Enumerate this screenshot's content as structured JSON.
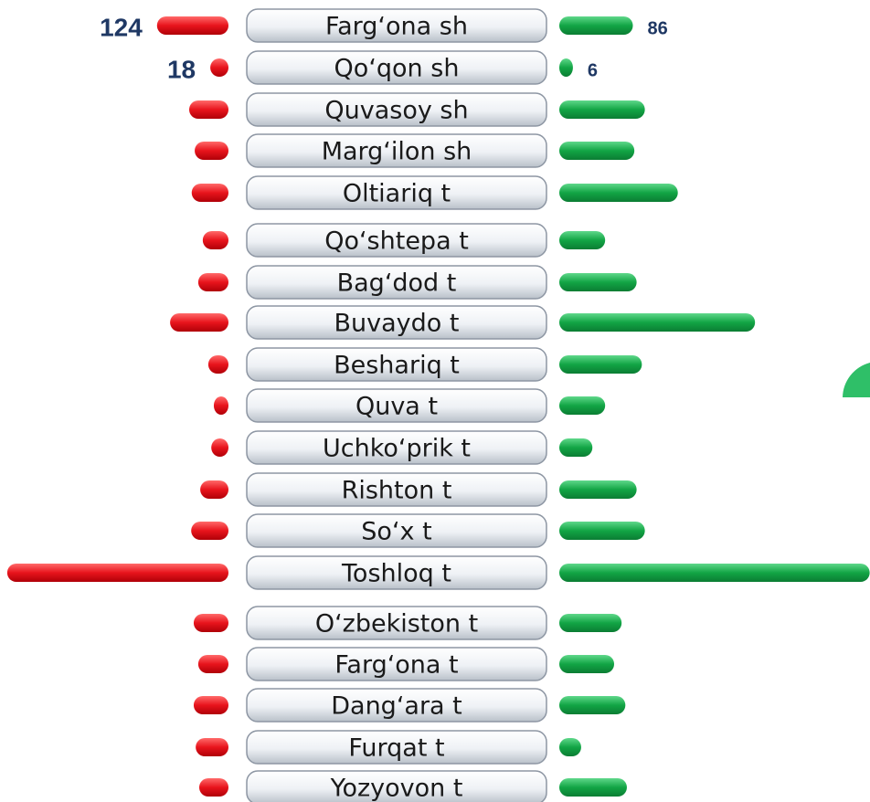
{
  "chart_data": {
    "type": "butterfly",
    "categories": [
      "Farg‘ona sh",
      "Qo‘qon sh",
      "Quvasoy sh",
      "Marg‘ilon sh",
      "Oltiariq t",
      "Qo‘shtepa t",
      "Bag‘dod t",
      "Buvaydo t",
      "Beshariq t",
      "Quva t",
      "Uchko‘prik t",
      "Rishton t",
      "So‘x t",
      "Toshloq t",
      "O‘zbekiston t",
      "Farg‘ona t",
      "Dang‘ara t",
      "Furqat t",
      "Yozyovon t"
    ],
    "series": [
      {
        "color": "#e8141c",
        "values": [
          124,
          18,
          60,
          49,
          55,
          33,
          42,
          98,
          22,
          11,
          16,
          38,
          56,
          422,
          51,
          42,
          51,
          47,
          40
        ],
        "value_labels": [
          "124",
          "18",
          null,
          null,
          null,
          null,
          null,
          null,
          null,
          null,
          null,
          null,
          null,
          null,
          null,
          null,
          null,
          null,
          null
        ]
      },
      {
        "color": "#12a545",
        "values": [
          86,
          6,
          102,
          88,
          146,
          49,
          91,
          249,
          98,
          49,
          32,
          91,
          102,
          402,
          71,
          61,
          76,
          17,
          78
        ],
        "value_labels": [
          "86",
          "6",
          null,
          null,
          null,
          null,
          null,
          null,
          null,
          null,
          null,
          null,
          null,
          null,
          null,
          null,
          null,
          null,
          null
        ]
      }
    ]
  }
}
